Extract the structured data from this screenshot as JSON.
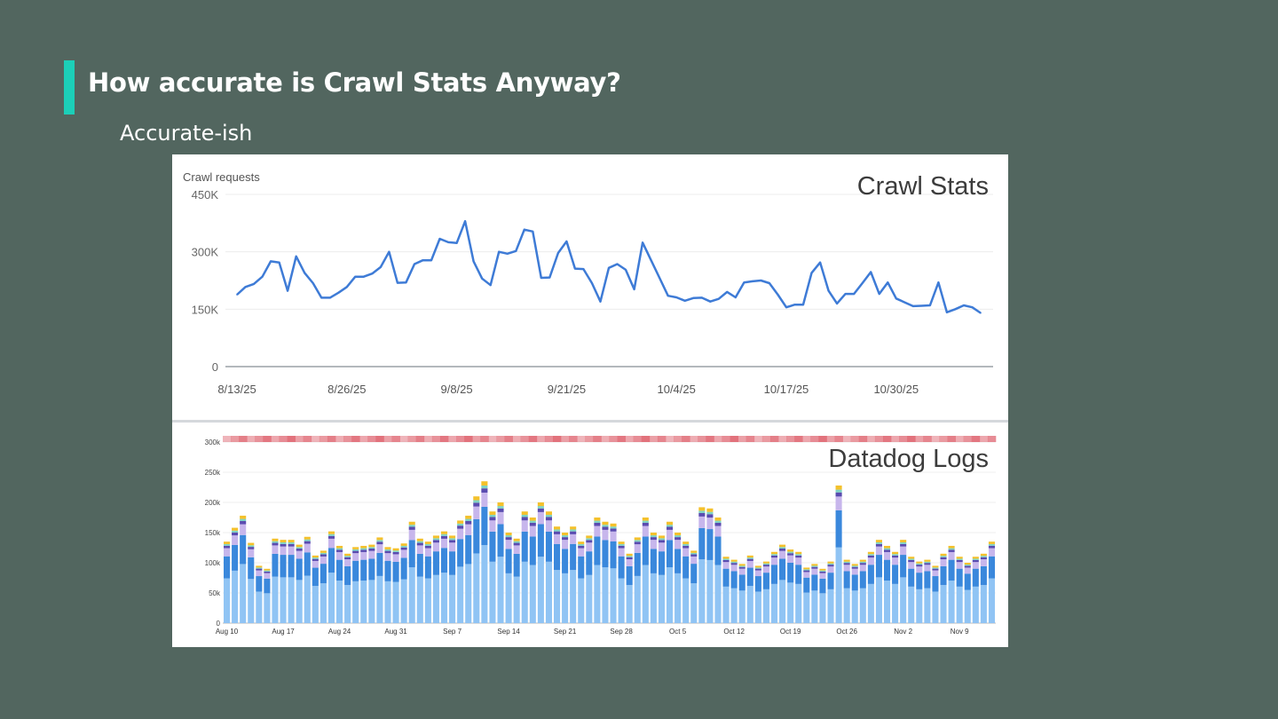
{
  "slide": {
    "title": "How accurate is Crawl Stats Anyway?",
    "subtitle": "Accurate-ish",
    "accent_color": "#1ccfb8",
    "background_color": "#52665f"
  },
  "chart_data": [
    {
      "type": "line",
      "name": "crawl-stats",
      "overlay_label": "Crawl Stats",
      "ylabel": "Crawl requests",
      "ylim": [
        0,
        450000
      ],
      "yticks": [
        0,
        150000,
        300000,
        450000
      ],
      "ytick_labels": [
        "0",
        "150K",
        "300K",
        "450K"
      ],
      "xtick_labels": [
        "8/13/25",
        "8/26/25",
        "9/8/25",
        "9/21/25",
        "10/4/25",
        "10/17/25",
        "10/30/25"
      ],
      "xtick_index": [
        0,
        13,
        26,
        39,
        52,
        65,
        78
      ],
      "grid": true,
      "color": "#3e7bd6",
      "series": [
        {
          "name": "Crawl requests",
          "values": [
            188000,
            208000,
            216000,
            235000,
            275000,
            272000,
            198000,
            288000,
            245000,
            218000,
            180000,
            180000,
            193000,
            208000,
            235000,
            235000,
            243000,
            260000,
            300000,
            219000,
            220000,
            268000,
            278000,
            278000,
            334000,
            325000,
            323000,
            380000,
            275000,
            230000,
            213000,
            300000,
            295000,
            302000,
            358000,
            353000,
            232000,
            233000,
            297000,
            327000,
            256000,
            255000,
            218000,
            170000,
            258000,
            268000,
            253000,
            202000,
            324000,
            278000,
            232000,
            185000,
            181000,
            172000,
            179000,
            180000,
            170000,
            177000,
            195000,
            181000,
            220000,
            223000,
            225000,
            218000,
            188000,
            155000,
            162000,
            162000,
            245000,
            272000,
            198000,
            165000,
            190000,
            190000,
            218000,
            247000,
            190000,
            220000,
            178000,
            168000,
            158000,
            159000,
            160000,
            220000,
            142000,
            150000,
            160000,
            155000,
            140000
          ]
        }
      ]
    },
    {
      "type": "bar",
      "stacked": true,
      "name": "datadog-logs",
      "overlay_label": "Datadog Logs",
      "ylim": [
        0,
        300000
      ],
      "yticks": [
        0,
        50000,
        100000,
        150000,
        200000,
        250000,
        300000
      ],
      "ytick_labels": [
        "0",
        "50k",
        "100k",
        "150k",
        "200k",
        "250k",
        "300k"
      ],
      "xtick_labels": [
        "Aug 10",
        "Aug 17",
        "Aug 24",
        "Aug 31",
        "Sep 7",
        "Sep 14",
        "Sep 21",
        "Sep 28",
        "Oct 5",
        "Oct 12",
        "Oct 19",
        "Oct 26",
        "Nov 2",
        "Nov 9"
      ],
      "xtick_index": [
        0,
        7,
        14,
        21,
        28,
        35,
        42,
        49,
        56,
        63,
        70,
        77,
        84,
        91
      ],
      "totals": [
        135000,
        158000,
        178000,
        133000,
        95000,
        90000,
        140000,
        138000,
        138000,
        130000,
        143000,
        112000,
        120000,
        152000,
        128000,
        115000,
        126000,
        128000,
        130000,
        142000,
        126000,
        124000,
        132000,
        168000,
        140000,
        135000,
        145000,
        152000,
        145000,
        170000,
        178000,
        210000,
        235000,
        185000,
        200000,
        150000,
        140000,
        185000,
        175000,
        200000,
        185000,
        160000,
        150000,
        160000,
        135000,
        145000,
        175000,
        168000,
        165000,
        135000,
        115000,
        142000,
        175000,
        150000,
        145000,
        168000,
        150000,
        135000,
        120000,
        192000,
        190000,
        175000,
        110000,
        105000,
        98000,
        112000,
        95000,
        102000,
        118000,
        130000,
        122000,
        118000,
        92000,
        98000,
        90000,
        102000,
        228000,
        105000,
        98000,
        105000,
        118000,
        138000,
        128000,
        118000,
        138000,
        110000,
        102000,
        105000,
        95000,
        115000,
        128000,
        110000,
        100000,
        110000,
        115000,
        135000
      ],
      "series": [
        {
          "name": "series-1",
          "color": "#90c4f4",
          "fraction": 0.55
        },
        {
          "name": "series-2",
          "color": "#3a88dc",
          "fraction": 0.27
        },
        {
          "name": "series-3",
          "color": "#c7b6ec",
          "fraction": 0.1
        },
        {
          "name": "series-4",
          "color": "#5a4bb0",
          "fraction": 0.03
        },
        {
          "name": "series-5",
          "color": "#7fd3c4",
          "fraction": 0.02
        },
        {
          "name": "series-6",
          "color": "#f4c12c",
          "fraction": 0.03
        }
      ],
      "heat_strip_color": "#e06a75"
    }
  ]
}
